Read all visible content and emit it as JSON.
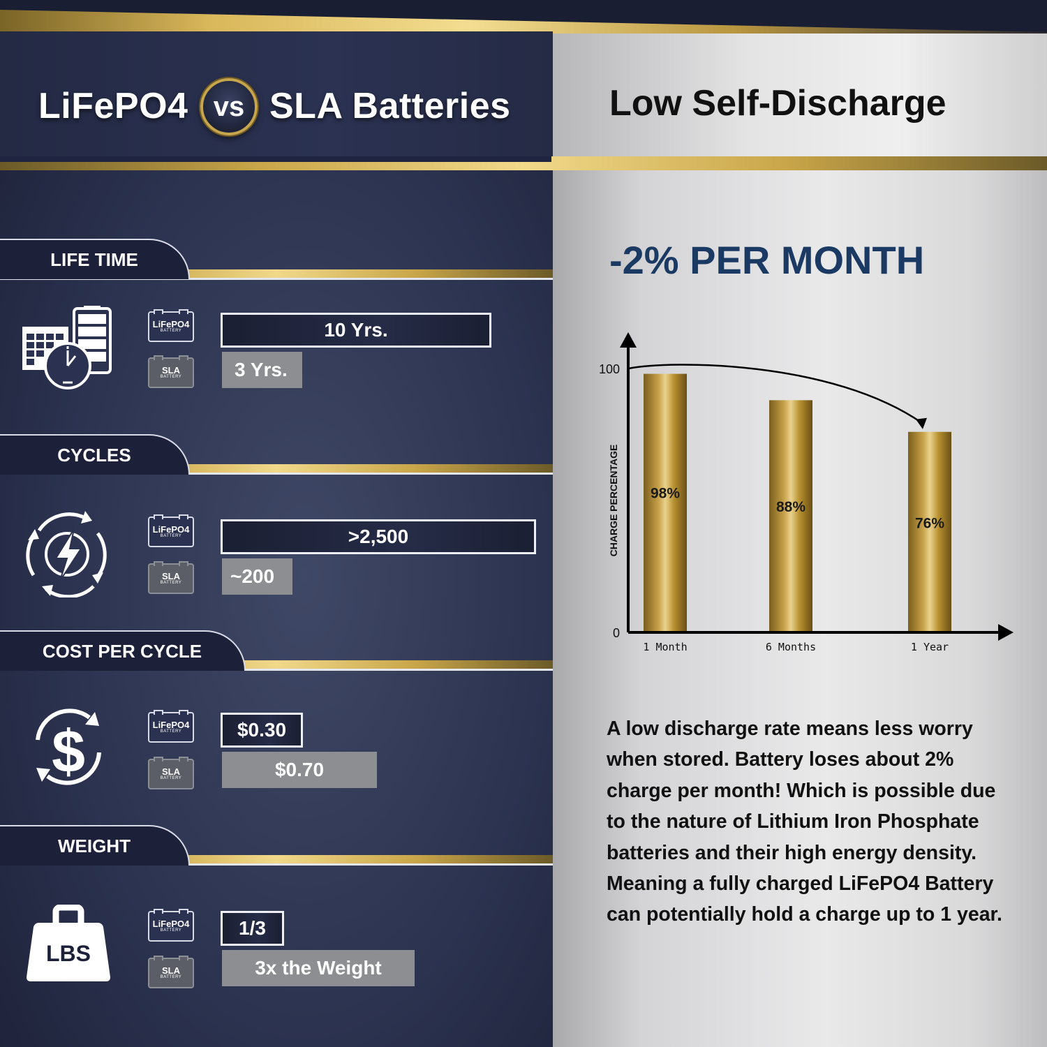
{
  "header": {
    "left_title_a": "LiFePO4",
    "vs": "vs",
    "left_title_b": "SLA Batteries",
    "right_title": "Low Self-Discharge"
  },
  "battery_labels": {
    "lifepo4": "LiFePO4",
    "sla": "SLA",
    "sub": "BATTERY"
  },
  "sections": [
    {
      "title": "LIFE TIME",
      "icon": "calendar-clock-battery-icon",
      "lifepo4_value": "10 Yrs.",
      "sla_value": "3 Yrs."
    },
    {
      "title": "CYCLES",
      "icon": "cycle-lightning-icon",
      "lifepo4_value": ">2,500",
      "sla_value": "~200"
    },
    {
      "title": "COST PER CYCLE",
      "icon": "dollar-cycle-icon",
      "lifepo4_value": "$0.30",
      "sla_value": "$0.70"
    },
    {
      "title": "WEIGHT",
      "icon": "weight-lbs-icon",
      "icon_text": "LBS",
      "lifepo4_value": "1/3",
      "sla_value": "3x the Weight"
    }
  ],
  "right": {
    "headline": "-2% PER MONTH",
    "description": "A low discharge rate means less worry when stored. Battery loses about 2% charge per month! Which is possible due to the nature of Lithium Iron Phosphate batteries and their high energy density. Meaning a fully charged LiFePO4 Battery can potentially hold a charge up to 1 year."
  },
  "chart_data": {
    "type": "bar",
    "categories": [
      "1 Month",
      "6 Months",
      "1 Year"
    ],
    "values": [
      98,
      88,
      76
    ],
    "value_labels": [
      "98%",
      "88%",
      "76%"
    ],
    "ylabel": "CHARGE PERCENTAGE",
    "ylim": [
      0,
      100
    ],
    "yticks": [
      "0",
      "100"
    ],
    "grid": false,
    "bar_color": "#b8912f"
  },
  "colors": {
    "navy": "#1c2139",
    "gold": "#c9a649",
    "headline_blue": "#1b3a63"
  }
}
